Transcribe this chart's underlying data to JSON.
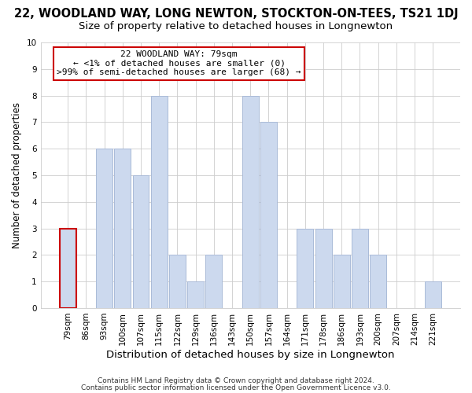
{
  "title": "22, WOODLAND WAY, LONG NEWTON, STOCKTON-ON-TEES, TS21 1DJ",
  "subtitle": "Size of property relative to detached houses in Longnewton",
  "xlabel": "Distribution of detached houses by size in Longnewton",
  "ylabel": "Number of detached properties",
  "footer_line1": "Contains HM Land Registry data © Crown copyright and database right 2024.",
  "footer_line2": "Contains public sector information licensed under the Open Government Licence v3.0.",
  "bar_labels": [
    "79sqm",
    "86sqm",
    "93sqm",
    "100sqm",
    "107sqm",
    "115sqm",
    "122sqm",
    "129sqm",
    "136sqm",
    "143sqm",
    "150sqm",
    "157sqm",
    "164sqm",
    "171sqm",
    "178sqm",
    "186sqm",
    "193sqm",
    "200sqm",
    "207sqm",
    "214sqm",
    "221sqm"
  ],
  "bar_values": [
    3,
    0,
    6,
    6,
    5,
    8,
    2,
    1,
    2,
    0,
    8,
    7,
    0,
    3,
    3,
    2,
    3,
    2,
    0,
    0,
    1
  ],
  "bar_color": "#ccd9ee",
  "bar_edge_color": "#aabbd8",
  "highlight_index": 0,
  "annotation_box_color": "#ffffff",
  "annotation_box_edge_color": "#cc0000",
  "annotation_title": "22 WOODLAND WAY: 79sqm",
  "annotation_line1": "← <1% of detached houses are smaller (0)",
  "annotation_line2": ">99% of semi-detached houses are larger (68) →",
  "ylim": [
    0,
    10
  ],
  "yticks": [
    0,
    1,
    2,
    3,
    4,
    5,
    6,
    7,
    8,
    9,
    10
  ],
  "background_color": "#ffffff",
  "grid_color": "#cccccc",
  "title_fontsize": 10.5,
  "subtitle_fontsize": 9.5,
  "xlabel_fontsize": 9.5,
  "ylabel_fontsize": 8.5,
  "tick_fontsize": 7.5,
  "footer_fontsize": 6.5
}
